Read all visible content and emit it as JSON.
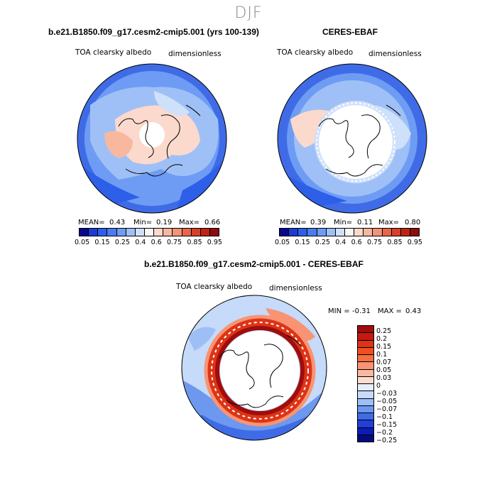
{
  "season": "DJF",
  "panels": [
    {
      "title": "b.e21.B1850.f09_g17.cesm2-cmip5.001 (yrs 100-139)",
      "variable": "TOA clearsky albedo",
      "units": "dimensionless",
      "mean_label": "MEAN=",
      "mean": "0.43",
      "min_label": "Min=",
      "min": "0.19",
      "max_label": "Max=",
      "max": "0.66"
    },
    {
      "title": "CERES-EBAF",
      "variable": "TOA clearsky albedo",
      "units": "dimensionless",
      "mean_label": "MEAN=",
      "mean": "0.39",
      "min_label": "Min=",
      "min": "0.11",
      "max_label": "Max=",
      "max": "0.80"
    }
  ],
  "abs_colorbar": {
    "colors": [
      "#08088a",
      "#1c3cd2",
      "#2e5fe8",
      "#4a7cf0",
      "#6e9cf4",
      "#9fc0f6",
      "#cfe0fa",
      "#f6f6f6",
      "#fbd9cc",
      "#f7b89f",
      "#f29479",
      "#e8664a",
      "#d8402a",
      "#bd2414",
      "#8e0c0c"
    ],
    "labels": [
      "0.05",
      "0.15",
      "0.25",
      "0.4",
      "0.6",
      "0.75",
      "0.85",
      "0.95"
    ]
  },
  "diff_panel": {
    "title": "b.e21.B1850.f09_g17.cesm2-cmip5.001 - CERES-EBAF",
    "variable": "TOA clearsky albedo",
    "units": "dimensionless",
    "min_label": "MIN =",
    "min": "-0.31",
    "max_label": "MAX =",
    "max": "0.43"
  },
  "diff_colorbar": {
    "colors": [
      "#a00d0d",
      "#c41a10",
      "#dd3416",
      "#ee5020",
      "#f56f3f",
      "#f89473",
      "#fab8a2",
      "#fcdccf",
      "#e4eefc",
      "#c6daf9",
      "#9dbff6",
      "#6c98f0",
      "#3f6ce6",
      "#2140d6",
      "#0f1cb4",
      "#070a7e"
    ],
    "labels": [
      "0.25",
      "0.2",
      "0.15",
      "0.1",
      "0.07",
      "0.05",
      "0.03",
      "0",
      "−0.03",
      "−0.05",
      "−0.07",
      "−0.1",
      "−0.15",
      "−0.2",
      "−0.25"
    ]
  }
}
